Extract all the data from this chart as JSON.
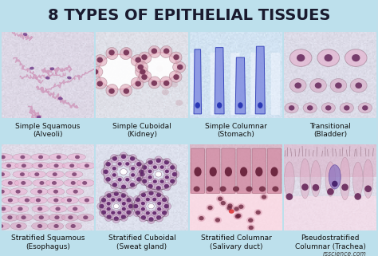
{
  "title": "8 TYPES OF EPITHELIAL TISSUES",
  "title_fontsize": 14,
  "title_color": "#1a1a2e",
  "background_color": "#bde0ec",
  "cells": [
    {
      "row": 0,
      "col": 0,
      "label_line1": "Simple Squamous",
      "label_line2": "(Alveoli)",
      "base_color": [
        0.95,
        0.82,
        0.88
      ],
      "accent_color": [
        0.8,
        0.55,
        0.7
      ],
      "nucleus_color": [
        0.45,
        0.25,
        0.55
      ],
      "pattern": "squamous_simple"
    },
    {
      "row": 0,
      "col": 1,
      "label_line1": "Simple Cuboidal",
      "label_line2": "(Kidney)",
      "base_color": [
        0.97,
        0.88,
        0.9
      ],
      "accent_color": [
        0.88,
        0.65,
        0.72
      ],
      "nucleus_color": [
        0.45,
        0.18,
        0.32
      ],
      "pattern": "cuboidal_simple"
    },
    {
      "row": 0,
      "col": 2,
      "label_line1": "Simple Columnar",
      "label_line2": "(Stomach)",
      "base_color": [
        0.88,
        0.9,
        0.97
      ],
      "accent_color": [
        0.5,
        0.55,
        0.88
      ],
      "nucleus_color": [
        0.15,
        0.2,
        0.7
      ],
      "pattern": "columnar_simple"
    },
    {
      "row": 0,
      "col": 3,
      "label_line1": "Transitional",
      "label_line2": "(Bladder)",
      "base_color": [
        0.95,
        0.85,
        0.9
      ],
      "accent_color": [
        0.85,
        0.68,
        0.78
      ],
      "nucleus_color": [
        0.42,
        0.18,
        0.38
      ],
      "pattern": "transitional"
    },
    {
      "row": 1,
      "col": 0,
      "label_line1": "Stratified Squamous",
      "label_line2": "(Esophagus)",
      "base_color": [
        0.97,
        0.85,
        0.9
      ],
      "accent_color": [
        0.85,
        0.62,
        0.75
      ],
      "nucleus_color": [
        0.42,
        0.18,
        0.38
      ],
      "pattern": "squamous_stratified"
    },
    {
      "row": 1,
      "col": 1,
      "label_line1": "Stratified Cuboidal",
      "label_line2": "(Sweat gland)",
      "base_color": [
        0.95,
        0.88,
        0.93
      ],
      "accent_color": [
        0.8,
        0.62,
        0.78
      ],
      "nucleus_color": [
        0.38,
        0.15,
        0.42
      ],
      "pattern": "cuboidal_stratified"
    },
    {
      "row": 1,
      "col": 2,
      "label_line1": "Stratified Columnar",
      "label_line2": "(Salivary duct)",
      "base_color": [
        0.97,
        0.82,
        0.86
      ],
      "accent_color": [
        0.82,
        0.52,
        0.62
      ],
      "nucleus_color": [
        0.4,
        0.12,
        0.22
      ],
      "pattern": "columnar_stratified"
    },
    {
      "row": 1,
      "col": 3,
      "label_line1": "Pseudostratified",
      "label_line2": "Columnar (Trachea)",
      "base_color": [
        0.97,
        0.85,
        0.9
      ],
      "accent_color": [
        0.85,
        0.65,
        0.75
      ],
      "nucleus_color": [
        0.4,
        0.15,
        0.35
      ],
      "pattern": "pseudostratified"
    }
  ],
  "label_fontsize": 6.5,
  "label_color": "#111111",
  "watermark": "rsscience.com",
  "watermark_color": "#444444",
  "watermark_fontsize": 5.5
}
